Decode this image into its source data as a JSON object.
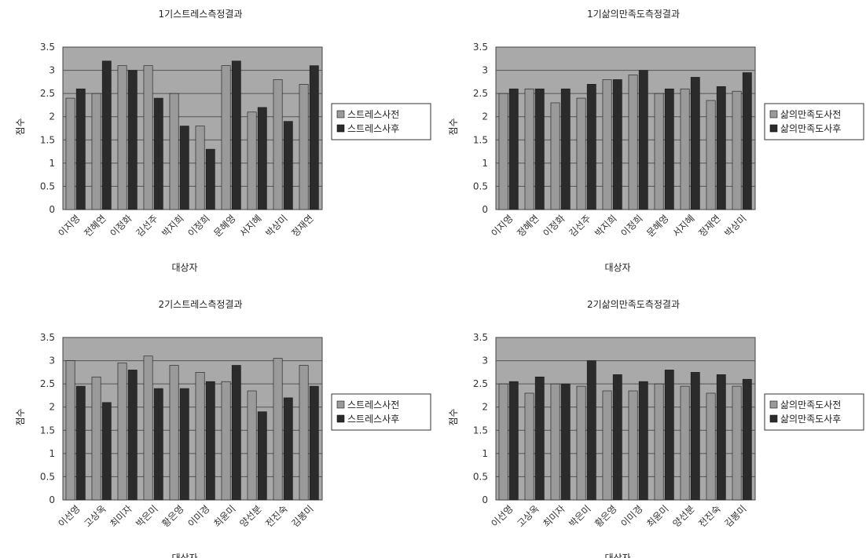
{
  "colors": {
    "plot_background": "#a9a9a9",
    "series_before": "#9a9a9a",
    "series_after": "#2b2b2b",
    "gridline": "#555555"
  },
  "chart_data": [
    {
      "type": "bar",
      "title": "1기스트레스측정결과",
      "xlabel": "대상자",
      "ylabel": "점수",
      "ylim": [
        0,
        3.5
      ],
      "yticks": [
        "0",
        "0.5",
        "1",
        "1.5",
        "2",
        "2.5",
        "3",
        "3.5"
      ],
      "grid": true,
      "legend_position": "right",
      "categories": [
        "이지영",
        "전혜연",
        "이정화",
        "김선주",
        "박지희",
        "이정희",
        "문혜영",
        "서지혜",
        "박상미",
        "정재연"
      ],
      "series": [
        {
          "name": "스트레스사전",
          "values": [
            2.4,
            2.5,
            3.1,
            3.1,
            2.5,
            1.8,
            3.1,
            2.1,
            2.8,
            2.7
          ]
        },
        {
          "name": "스트레스사후",
          "values": [
            2.6,
            3.2,
            3.0,
            2.4,
            1.8,
            1.3,
            3.2,
            2.2,
            1.9,
            3.1
          ]
        }
      ]
    },
    {
      "type": "bar",
      "title": "1기삶의만족도측정결과",
      "xlabel": "대상자",
      "ylabel": "점수",
      "ylim": [
        0,
        3.5
      ],
      "yticks": [
        "0",
        "0.5",
        "1",
        "1.5",
        "2",
        "2.5",
        "3",
        "3.5"
      ],
      "grid": true,
      "legend_position": "right",
      "categories": [
        "이지영",
        "정혜연",
        "이정화",
        "김선주",
        "박지희",
        "이정희",
        "문혜영",
        "서지혜",
        "정재연",
        "박상미"
      ],
      "series": [
        {
          "name": "삶의만족도사전",
          "values": [
            2.5,
            2.6,
            2.3,
            2.4,
            2.8,
            2.9,
            2.5,
            2.6,
            2.35,
            2.55
          ]
        },
        {
          "name": "삶의만족도사후",
          "values": [
            2.6,
            2.6,
            2.6,
            2.7,
            2.8,
            3.0,
            2.6,
            2.85,
            2.65,
            2.95
          ]
        }
      ]
    },
    {
      "type": "bar",
      "title": "2기스트레스측정결과",
      "xlabel": "대상자",
      "ylabel": "점수",
      "ylim": [
        0,
        3.5
      ],
      "yticks": [
        "0",
        "0.5",
        "1",
        "1.5",
        "2",
        "2.5",
        "3",
        "3.5"
      ],
      "grid": true,
      "legend_position": "right",
      "categories": [
        "이선영",
        "고상옥",
        "최미자",
        "박은미",
        "황은영",
        "이미경",
        "최윤미",
        "양선분",
        "전진숙",
        "김봉미"
      ],
      "series": [
        {
          "name": "스트레스사전",
          "values": [
            3.0,
            2.65,
            2.95,
            3.1,
            2.9,
            2.75,
            2.55,
            2.35,
            3.05,
            2.9
          ]
        },
        {
          "name": "스트레스사후",
          "values": [
            2.45,
            2.1,
            2.8,
            2.4,
            2.4,
            2.55,
            2.9,
            1.9,
            2.2,
            2.45
          ]
        }
      ]
    },
    {
      "type": "bar",
      "title": "2기삶의만족도측정결과",
      "xlabel": "대상자",
      "ylabel": "점수",
      "ylim": [
        0,
        3.5
      ],
      "yticks": [
        "0",
        "0.5",
        "1",
        "1.5",
        "2",
        "2.5",
        "3",
        "3.5"
      ],
      "grid": true,
      "legend_position": "right",
      "categories": [
        "이선영",
        "고상옥",
        "최미자",
        "박은미",
        "황은영",
        "이미경",
        "최윤미",
        "양선분",
        "전진숙",
        "김봉미"
      ],
      "series": [
        {
          "name": "삶의만족도사전",
          "values": [
            2.5,
            2.3,
            2.5,
            2.45,
            2.35,
            2.35,
            2.5,
            2.45,
            2.3,
            2.45
          ]
        },
        {
          "name": "삶의만족도사후",
          "values": [
            2.55,
            2.65,
            2.5,
            3.0,
            2.7,
            2.55,
            2.8,
            2.75,
            2.7,
            2.6
          ]
        }
      ]
    }
  ]
}
